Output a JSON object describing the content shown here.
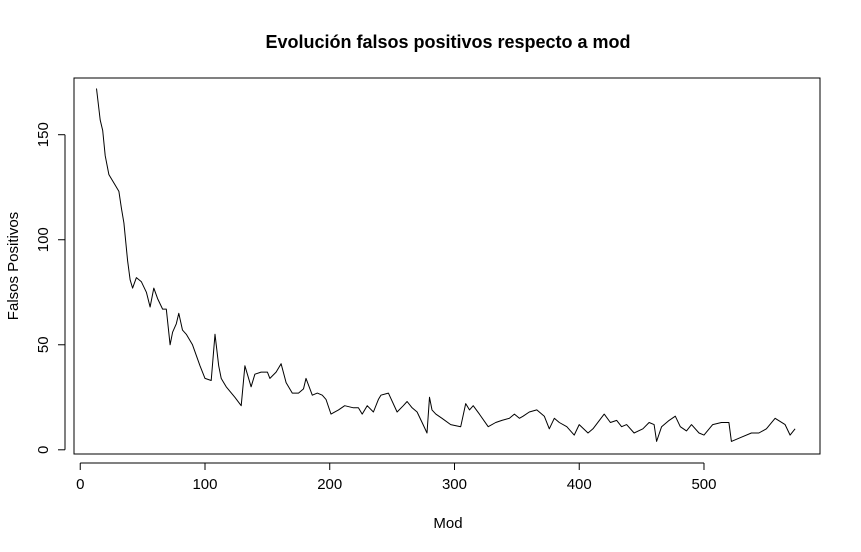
{
  "chart_data": {
    "type": "line",
    "title": "Evolución falsos positivos respecto a mod",
    "xlabel": "Mod",
    "ylabel": "Falsos Positivos",
    "xlim": [
      -5,
      593
    ],
    "ylim": [
      -2,
      177
    ],
    "xticks": [
      0,
      100,
      200,
      300,
      400,
      500
    ],
    "xtick_labels": [
      "0",
      "100",
      "200",
      "300",
      "400",
      "500"
    ],
    "yticks": [
      0,
      50,
      100,
      150
    ],
    "ytick_labels": [
      "0",
      "50",
      "100",
      "150"
    ],
    "grid": false,
    "legend": "none",
    "line_color": "#000000",
    "series": [
      {
        "x": [
          13,
          16,
          18,
          20,
          23,
          28,
          31,
          33,
          35,
          38,
          40,
          42,
          45,
          49,
          53,
          56,
          59,
          62,
          66,
          69,
          72,
          74,
          77,
          79,
          82,
          85,
          90,
          96,
          100,
          105,
          108,
          111,
          113,
          117,
          124,
          129,
          132,
          137,
          140,
          145,
          150,
          152,
          157,
          161,
          165,
          170,
          175,
          179,
          181,
          186,
          190,
          194,
          197,
          201,
          207,
          212,
          219,
          223,
          226,
          230,
          235,
          239,
          241,
          247,
          254,
          259,
          262,
          266,
          270,
          274,
          278,
          280,
          282,
          285,
          290,
          297,
          305,
          309,
          312,
          315,
          320,
          327,
          333,
          338,
          344,
          348,
          352,
          355,
          360,
          366,
          372,
          376,
          380,
          384,
          390,
          396,
          400,
          407,
          411,
          420,
          425,
          430,
          434,
          438,
          444,
          451,
          456,
          460,
          462,
          466,
          472,
          477,
          481,
          486,
          490,
          496,
          500,
          507,
          514,
          520,
          522,
          530,
          538,
          544,
          550,
          557,
          565,
          569,
          573
        ],
        "values": [
          172,
          157,
          152,
          140,
          131,
          126,
          123,
          115,
          108,
          90,
          81,
          77,
          82,
          80,
          75,
          68,
          77,
          72,
          67,
          67,
          50,
          56,
          60,
          65,
          57,
          55,
          50,
          40,
          34,
          33,
          55,
          40,
          34,
          30,
          25,
          21,
          40,
          30,
          36,
          37,
          37,
          34,
          37,
          41,
          32,
          27,
          27,
          29,
          34,
          26,
          27,
          26,
          24,
          17,
          19,
          21,
          20,
          20,
          17,
          21,
          18,
          24,
          26,
          27,
          18,
          21,
          23,
          20,
          18,
          13,
          8,
          25,
          19,
          17,
          15,
          12,
          11,
          22,
          19,
          21,
          17,
          11,
          13,
          14,
          15,
          17,
          15,
          16,
          18,
          19,
          16,
          10,
          15,
          13,
          11,
          7,
          12,
          8,
          10,
          17,
          13,
          14,
          11,
          12,
          8,
          10,
          13,
          12,
          4,
          11,
          14,
          16,
          11,
          9,
          12,
          8,
          7,
          12,
          13,
          13,
          4,
          6,
          8,
          8,
          10,
          15,
          12,
          7,
          10
        ]
      }
    ]
  }
}
